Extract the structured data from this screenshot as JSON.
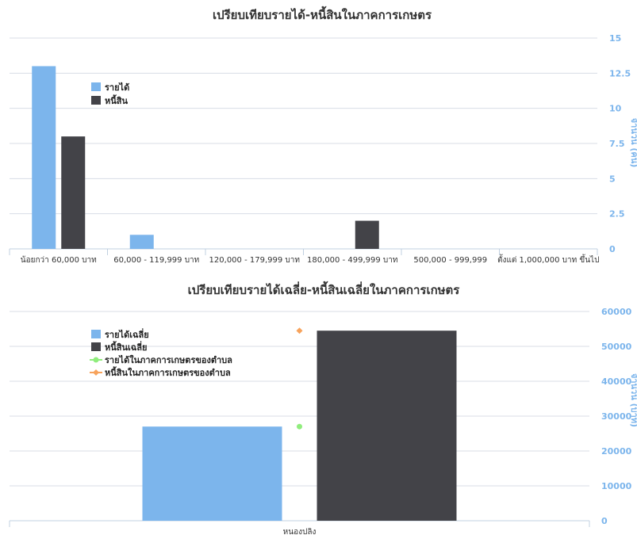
{
  "chart_data": [
    {
      "type": "bar",
      "title": "เปรียบเทียบรายได้-หนี้สินในภาคการเกษตร",
      "categories": [
        "น้อยกว่า 60,000 บาท",
        "60,000 - 119,999 บาท",
        "120,000 - 179,999 บาท",
        "180,000 - 499,999 บาท",
        "500,000 - 999,999",
        "ตั้งแต่ 1,000,000 บาท ขึ้นไป"
      ],
      "series": [
        {
          "name": "รายได้",
          "color": "#7cb5ec",
          "values": [
            13,
            1,
            0,
            0,
            0,
            0
          ]
        },
        {
          "name": "หนี้สิน",
          "color": "#434348",
          "values": [
            8,
            0,
            0,
            2,
            0,
            0
          ]
        }
      ],
      "ylim": [
        0,
        15
      ],
      "yticks": [
        "0",
        "2.5",
        "5",
        "7.5",
        "10",
        "12.5",
        "15"
      ],
      "ylabel": "จำนวน (คน)",
      "legend": "top-left"
    },
    {
      "type": "bar",
      "title": "เปรียบเทียบรายได้เฉลี่ย-หนี้สินเฉลี่ยในภาคการเกษตร",
      "categories": [
        "หนองปลิง"
      ],
      "series": [
        {
          "name": "รายได้เฉลี่ย",
          "type": "bar",
          "color": "#7cb5ec",
          "values": [
            27000
          ]
        },
        {
          "name": "หนี้สินเฉลี่ย",
          "type": "bar",
          "color": "#434348",
          "values": [
            54500
          ]
        },
        {
          "name": "รายได้ในภาคการเกษตรของตำบล",
          "type": "point",
          "color": "#90ed7d",
          "values": [
            27000
          ]
        },
        {
          "name": "หนี้สินในภาคการเกษตรของตำบล",
          "type": "point",
          "color": "#f7a35c",
          "values": [
            54500
          ]
        }
      ],
      "ylim": [
        0,
        60000
      ],
      "yticks": [
        "0",
        "10000",
        "20000",
        "30000",
        "40000",
        "50000",
        "60000"
      ],
      "ylabel": "จำนวน (บาท)",
      "legend": "left"
    }
  ]
}
